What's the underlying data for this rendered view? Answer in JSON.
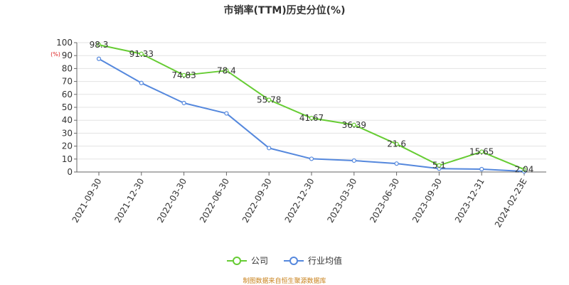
{
  "chart_data": {
    "type": "line",
    "title": "市销率(TTM)历史分位(%)",
    "ylabel": "(%)",
    "ylim": [
      0,
      100
    ],
    "yticks": [
      0,
      10,
      20,
      30,
      40,
      50,
      60,
      70,
      80,
      90,
      100
    ],
    "categories": [
      "2021-09-30",
      "2021-12-30",
      "2022-03-30",
      "2022-06-30",
      "2022-09-30",
      "2022-12-30",
      "2023-03-30",
      "2023-06-30",
      "2023-09-30",
      "2023-12-31",
      "2024-02-23E"
    ],
    "series": [
      {
        "name": "公司",
        "color": "#66cc33",
        "values": [
          98.3,
          91.33,
          74.83,
          78.4,
          55.78,
          41.67,
          36.39,
          21.6,
          5.1,
          15.65,
          2.04
        ],
        "labels": [
          "98.3",
          "91.33",
          "74.83",
          "78.4",
          "55.78",
          "41.67",
          "36.39",
          "21.6",
          "5.1",
          "15.65",
          "2.04"
        ]
      },
      {
        "name": "行业均值",
        "color": "#5588dd",
        "values": [
          87.5,
          68.8,
          53.3,
          45.3,
          18.5,
          10.2,
          8.8,
          6.5,
          2.6,
          2.2,
          0.5
        ]
      }
    ],
    "grid": true,
    "legend_position": "bottom"
  },
  "source": "制图数据来自恒生聚源数据库",
  "legend": [
    {
      "name": "公司",
      "color": "#66cc33"
    },
    {
      "name": "行业均值",
      "color": "#5588dd"
    }
  ]
}
